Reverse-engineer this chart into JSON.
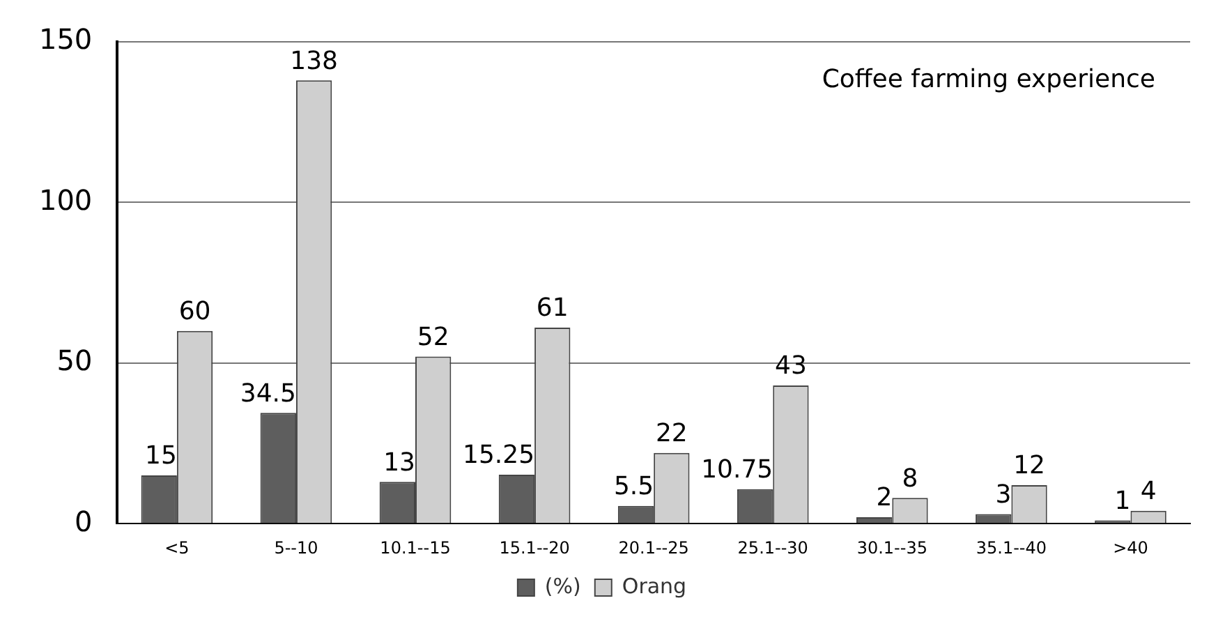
{
  "chart_data": {
    "type": "bar",
    "categories": [
      "<5",
      "5--10",
      "10.1--15",
      "15.1--20",
      "20.1--25",
      "25.1--30",
      "30.1--35",
      "35.1--40",
      ">40"
    ],
    "series": [
      {
        "name": "(%)",
        "color": "#5e5e5e",
        "values": [
          15,
          34.5,
          13,
          15.25,
          5.5,
          10.75,
          2,
          3,
          1
        ]
      },
      {
        "name": "Orang",
        "color": "#cfcfcf",
        "values": [
          60,
          138,
          52,
          61,
          22,
          43,
          8,
          12,
          4
        ]
      }
    ],
    "ylim": [
      0,
      150
    ],
    "yticks": [
      0,
      50,
      100,
      150
    ],
    "grid": "y",
    "legend": "bottom",
    "data_labels": true,
    "annotations": [
      "Coffee farming experience"
    ]
  }
}
